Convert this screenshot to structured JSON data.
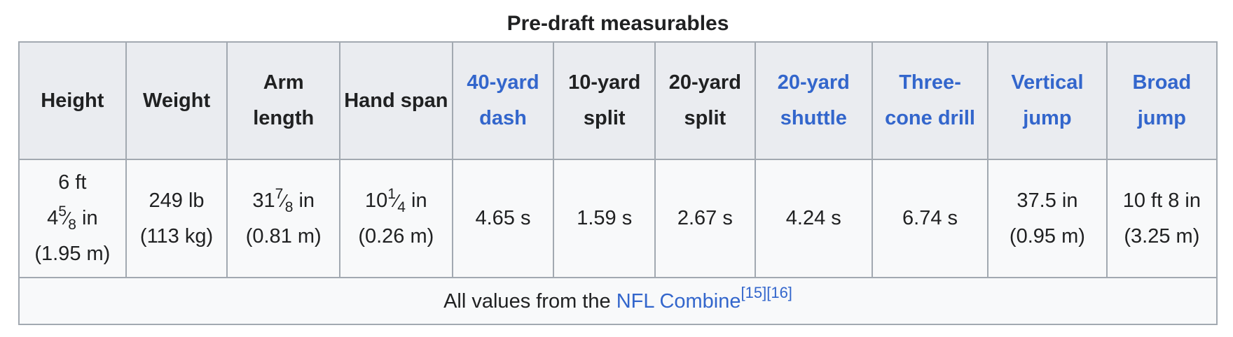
{
  "caption": "Pre-draft measurables",
  "headers": [
    {
      "text": "Height",
      "link": false
    },
    {
      "text": "Weight",
      "link": false
    },
    {
      "text": "Arm length",
      "link": false
    },
    {
      "text": "Hand span",
      "link": false
    },
    {
      "text": "40-yard dash",
      "link": true
    },
    {
      "text": "10-yard split",
      "link": false
    },
    {
      "text": "20-yard split",
      "link": false
    },
    {
      "text": "20-yard shuttle",
      "link": true
    },
    {
      "text": "Three-cone drill",
      "link": true
    },
    {
      "text": "Vertical jump",
      "link": true
    },
    {
      "text": "Broad jump",
      "link": true
    }
  ],
  "values": {
    "height": {
      "line1": "6 ft",
      "whole": "4",
      "num": "5",
      "den": "8",
      "unit": " in",
      "metric": "(1.95 m)"
    },
    "weight": {
      "line1": "249 lb",
      "metric": "(113 kg)"
    },
    "arm_length": {
      "whole": "31",
      "num": "7",
      "den": "8",
      "unit": " in",
      "metric": "(0.81 m)"
    },
    "hand_span": {
      "whole": "10",
      "num": "1",
      "den": "4",
      "unit": " in",
      "metric": "(0.26 m)"
    },
    "dash_40": "4.65 s",
    "split_10": "1.59 s",
    "split_20": "2.67 s",
    "shuttle_20": "4.24 s",
    "three_cone": "6.74 s",
    "vertical_jump": {
      "line1": "37.5 in",
      "metric": "(0.95 m)"
    },
    "broad_jump": {
      "line1": "10 ft 8 in",
      "metric": "(3.25 m)"
    }
  },
  "footer": {
    "prefix": "All values from the ",
    "link_text": "NFL Combine",
    "refs": [
      "[15]",
      "[16]"
    ]
  },
  "colors": {
    "link": "#3366cc",
    "header_bg": "#eaecf0",
    "cell_bg": "#f8f9fa",
    "border": "#a2a9b1",
    "text": "#202122"
  }
}
